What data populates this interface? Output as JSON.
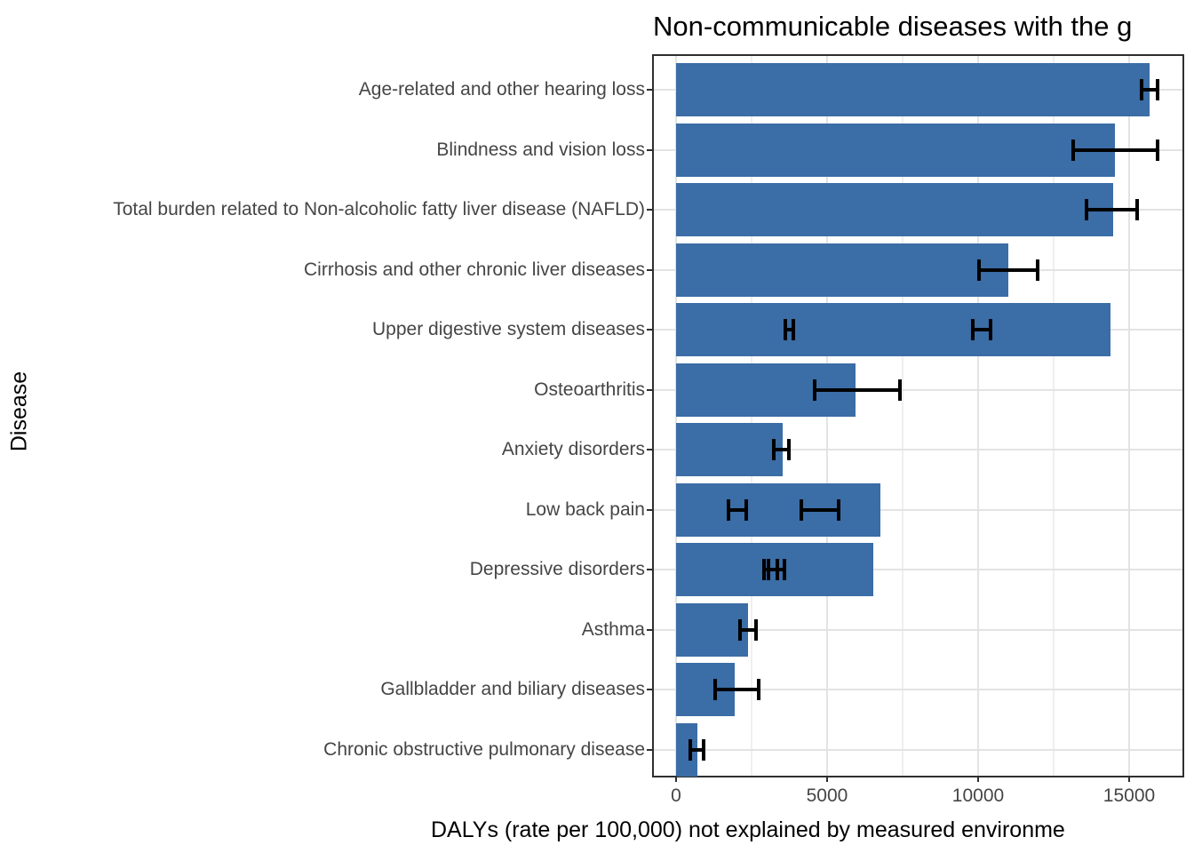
{
  "chart_data": {
    "type": "bar",
    "orientation": "horizontal",
    "title": "Non-communicable diseases with the g",
    "title_note": "title is clipped at the right edge of the image",
    "xlabel": "DALYs (rate per 100,000) not explained by measured environme",
    "xlabel_note": "x-axis title is clipped at the right edge of the image",
    "ylabel": "Disease",
    "bar_color": "#3b6da6",
    "error_bar_color": "#000000",
    "grid_major_color": "#e3e3e3",
    "grid_minor_color": "#efefef",
    "panel_border_color": "#2f2f2f",
    "xlim": [
      -735,
      16765
    ],
    "x_major_ticks": [
      0,
      5000,
      10000,
      15000
    ],
    "x_tick_labels": [
      "0",
      "5000",
      "10000",
      "15000"
    ],
    "x_minor_ticks": [
      2500,
      7500,
      12500
    ],
    "grid": true,
    "legend": "none",
    "categories": [
      "Age-related and other hearing loss",
      "Blindness and vision loss",
      "Total burden related to Non-alcoholic fatty liver disease (NAFLD)",
      "Cirrhosis and other chronic liver diseases",
      "Upper digestive system diseases",
      "Osteoarthritis",
      "Anxiety disorders",
      "Low back pain",
      "Depressive disorders",
      "Asthma",
      "Gallbladder and biliary diseases",
      "Chronic obstructive pulmonary disease"
    ],
    "values": [
      15680,
      14530,
      14470,
      11000,
      14390,
      5940,
      3530,
      6760,
      6530,
      2380,
      1940,
      710
    ],
    "error_bars": [
      [
        [
          15410,
          15940
        ]
      ],
      [
        [
          13150,
          15940
        ]
      ],
      [
        [
          13590,
          15270
        ]
      ],
      [
        [
          10030,
          11970
        ]
      ],
      [
        [
          3620,
          3880
        ],
        [
          9820,
          10410
        ]
      ],
      [
        [
          4590,
          7410
        ]
      ],
      [
        [
          3240,
          3740
        ]
      ],
      [
        [
          1740,
          2320
        ],
        [
          4150,
          5380
        ]
      ],
      [
        [
          2910,
          3350
        ],
        [
          3060,
          3590
        ]
      ],
      [
        [
          2120,
          2650
        ]
      ],
      [
        [
          1290,
          2740
        ]
      ],
      [
        [
          470,
          910
        ]
      ]
    ]
  }
}
